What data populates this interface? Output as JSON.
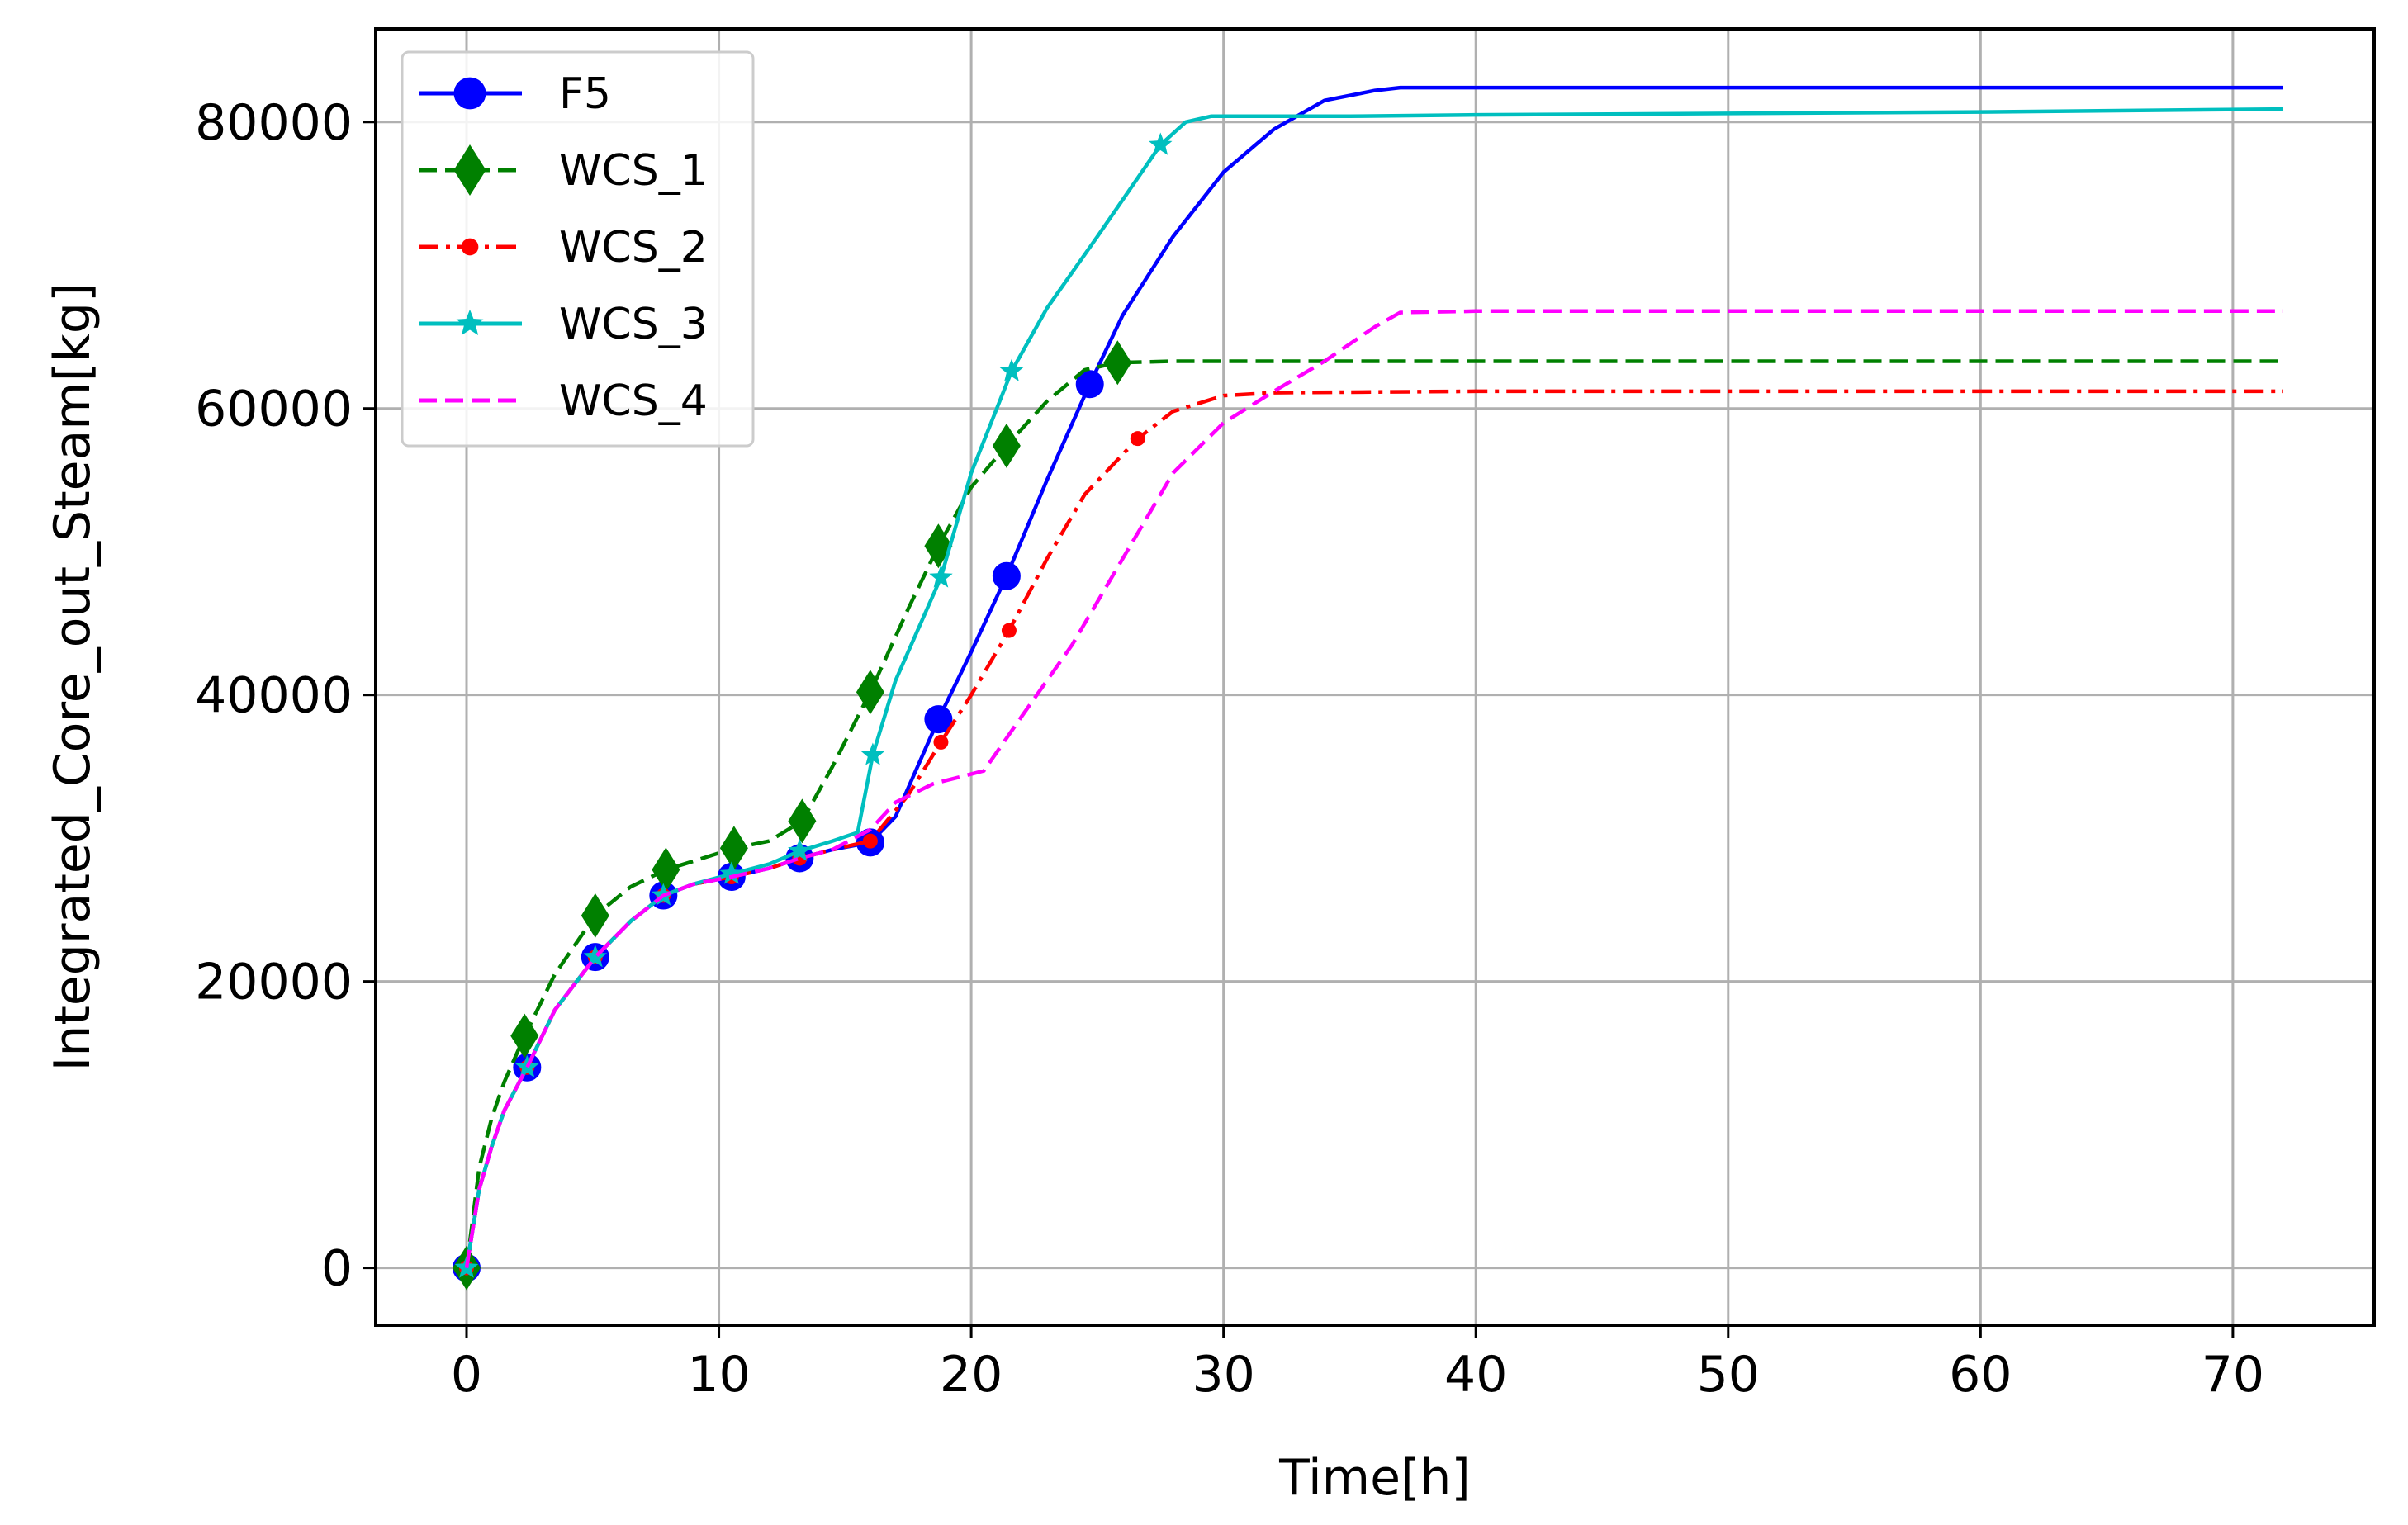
{
  "chart_data": {
    "type": "line",
    "title": "",
    "xlabel": "Time[h]",
    "ylabel": "Integrated_Core_out_Steam[kg]",
    "xlim": [
      -3.6,
      75.6
    ],
    "ylim": [
      -4000,
      86500
    ],
    "xticks": [
      0,
      10,
      20,
      30,
      40,
      50,
      60,
      70
    ],
    "yticks": [
      0,
      20000,
      40000,
      60000,
      80000
    ],
    "xtick_labels": [
      "0",
      "10",
      "20",
      "30",
      "40",
      "50",
      "60",
      "70"
    ],
    "ytick_labels": [
      "0",
      "20000",
      "40000",
      "60000",
      "80000"
    ],
    "grid": true,
    "legend_position": "top-left",
    "series": [
      {
        "name": "F5",
        "color": "#0000ff",
        "dash": "solid",
        "marker": "circle",
        "x": [
          0,
          0.5,
          1,
          1.5,
          2.4,
          3.5,
          5.1,
          6.5,
          7.8,
          9,
          10.5,
          12,
          13.2,
          14.5,
          16,
          17,
          18.7,
          20,
          21.4,
          23,
          24.7,
          26,
          28,
          30,
          32,
          34,
          36,
          37,
          40,
          50,
          60,
          72
        ],
        "y": [
          0,
          5500,
          8500,
          11000,
          14000,
          18000,
          21700,
          24200,
          26000,
          26800,
          27300,
          27900,
          28600,
          29200,
          29700,
          31500,
          38300,
          43000,
          48300,
          55000,
          61700,
          66500,
          72000,
          76500,
          79500,
          81500,
          82200,
          82400,
          82400,
          82400,
          82400,
          82400
        ],
        "markers_x": [
          0,
          2.4,
          5.1,
          7.8,
          10.5,
          13.2,
          16,
          18.7,
          21.4,
          24.7
        ],
        "markers_y": [
          0,
          14000,
          21700,
          26000,
          27300,
          28600,
          29700,
          38300,
          48300,
          61700
        ]
      },
      {
        "name": "WCS_1",
        "color": "#008000",
        "dash": "dashed",
        "marker": "diamond",
        "x": [
          0,
          0.5,
          1,
          1.5,
          2.3,
          3.5,
          5.1,
          6.5,
          7.9,
          9,
          10.6,
          12,
          13.3,
          14.5,
          16,
          17.5,
          18.7,
          20,
          21.4,
          23,
          24.5,
          25.8,
          28,
          30,
          40,
          50,
          60,
          72
        ],
        "y": [
          0,
          7000,
          10500,
          13000,
          16200,
          20500,
          24600,
          26600,
          27800,
          28400,
          29300,
          29800,
          31200,
          35000,
          40200,
          46000,
          50400,
          54500,
          57400,
          60500,
          62700,
          63200,
          63300,
          63300,
          63300,
          63300,
          63300,
          63300
        ],
        "markers_x": [
          0,
          2.3,
          5.1,
          7.9,
          10.6,
          13.3,
          16,
          18.7,
          21.4,
          25.8
        ],
        "markers_y": [
          0,
          16200,
          24600,
          27800,
          29300,
          31200,
          40200,
          50400,
          57400,
          63200
        ]
      },
      {
        "name": "WCS_2",
        "color": "#ff0000",
        "dash": "dashdot",
        "marker": "point",
        "x": [
          0,
          0.5,
          1,
          1.5,
          2.4,
          3.5,
          5.1,
          6.5,
          7.8,
          9,
          10.5,
          12,
          13.2,
          14.5,
          16,
          17.5,
          18.8,
          20,
          21.5,
          23,
          24.5,
          26.6,
          28,
          30,
          32,
          40,
          50,
          60,
          72
        ],
        "y": [
          0,
          5500,
          8500,
          11000,
          14000,
          18000,
          21700,
          24200,
          26000,
          26800,
          27300,
          27900,
          28600,
          29200,
          29800,
          33000,
          36700,
          40000,
          44500,
          49500,
          54000,
          57900,
          59800,
          60900,
          61100,
          61200,
          61200,
          61200,
          61200
        ],
        "markers_x": [
          0,
          2.4,
          5.1,
          7.8,
          10.5,
          13.2,
          16,
          18.8,
          21.5,
          26.6
        ],
        "markers_y": [
          0,
          14000,
          21700,
          26000,
          27300,
          28600,
          29800,
          36700,
          44500,
          57900
        ]
      },
      {
        "name": "WCS_3",
        "color": "#00bfbf",
        "dash": "solid",
        "marker": "star",
        "x": [
          0,
          0.5,
          1,
          1.5,
          2.4,
          3.5,
          5.1,
          6.5,
          7.8,
          9,
          10.5,
          12,
          13.2,
          14.5,
          15.5,
          16.1,
          17,
          18.8,
          20,
          21.6,
          23,
          25,
          27.5,
          28.5,
          29.5,
          31,
          35,
          40,
          50,
          60,
          72
        ],
        "y": [
          0,
          5500,
          8500,
          11000,
          14000,
          18000,
          21700,
          24200,
          26000,
          26800,
          27500,
          28200,
          29100,
          29800,
          30400,
          35800,
          41000,
          48200,
          55500,
          62600,
          67000,
          72000,
          78400,
          80000,
          80400,
          80400,
          80400,
          80500,
          80600,
          80700,
          80900
        ],
        "markers_x": [
          0,
          2.4,
          5.1,
          7.8,
          10.5,
          13.2,
          16.1,
          18.8,
          21.6,
          27.5
        ],
        "markers_y": [
          0,
          14000,
          21700,
          26000,
          27500,
          29100,
          35800,
          48200,
          62600,
          78400
        ]
      },
      {
        "name": "WCS_4",
        "color": "#ff00ff",
        "dash": "dashed",
        "marker": "none",
        "x": [
          0,
          0.5,
          1,
          1.5,
          2.4,
          3.5,
          5.1,
          6.5,
          7.8,
          9,
          10.5,
          12,
          13.2,
          14.5,
          16,
          17,
          18.5,
          20.5,
          22,
          24,
          26,
          28,
          30,
          32,
          34,
          36,
          37,
          40,
          50,
          60,
          72
        ],
        "y": [
          0,
          5500,
          8500,
          11000,
          14000,
          18000,
          21700,
          24200,
          26000,
          26800,
          27300,
          27900,
          28600,
          29200,
          30600,
          32500,
          33800,
          34700,
          38500,
          43500,
          49500,
          55500,
          59000,
          61200,
          63300,
          65700,
          66700,
          66800,
          66800,
          66800,
          66800
        ]
      }
    ]
  }
}
